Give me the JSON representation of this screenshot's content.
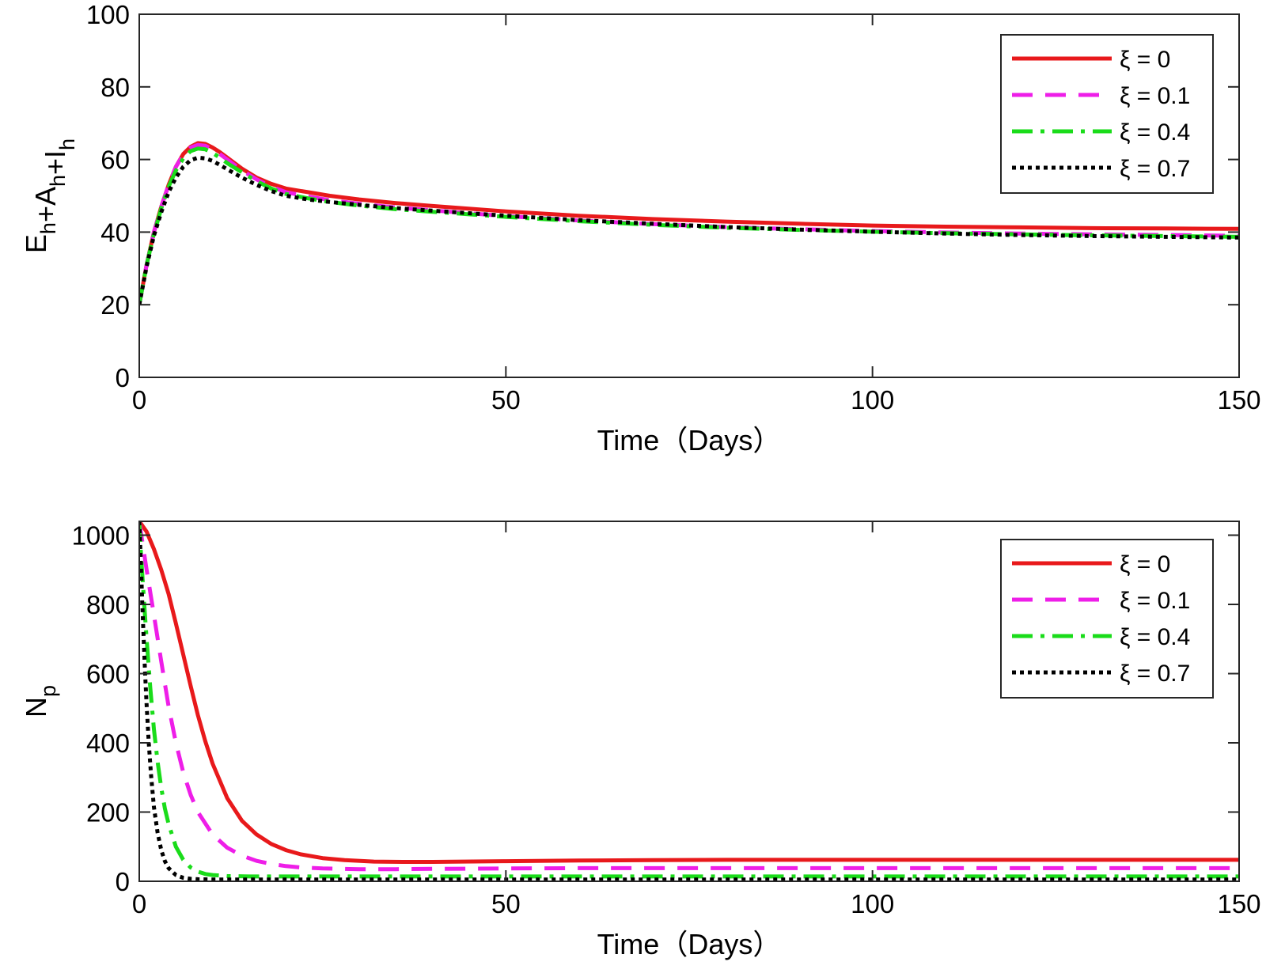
{
  "chart_data": [
    {
      "type": "line",
      "title": "",
      "xlabel": "Time（Days）",
      "ylabel_parts": [
        {
          "text": "E",
          "sub": "h"
        },
        {
          "text": "+A",
          "sub": "h"
        },
        {
          "text": "+I",
          "sub": "h"
        }
      ],
      "xlim": [
        0,
        150
      ],
      "ylim": [
        0,
        100
      ],
      "xticks": [
        0,
        50,
        100,
        150
      ],
      "yticks": [
        0,
        20,
        40,
        60,
        80,
        100
      ],
      "grid": false,
      "legend_position": "top-right",
      "series": [
        {
          "name": "ξ = 0",
          "color": "#e8191b",
          "style": "solid",
          "x": [
            0,
            1,
            2,
            3,
            4,
            5,
            6,
            7,
            8,
            9,
            10,
            11,
            12,
            14,
            16,
            18,
            20,
            23,
            26,
            30,
            35,
            40,
            50,
            60,
            70,
            80,
            90,
            100,
            110,
            120,
            130,
            140,
            150
          ],
          "y": [
            20,
            31,
            40,
            47,
            53,
            58,
            61.5,
            63.5,
            64.5,
            64.3,
            63.3,
            62,
            60.5,
            57.5,
            55,
            53.3,
            52,
            51,
            50,
            49,
            48,
            47.2,
            45.7,
            44.5,
            43.6,
            42.9,
            42.3,
            41.8,
            41.5,
            41.3,
            41.1,
            41,
            40.9
          ]
        },
        {
          "name": "ξ = 0.1",
          "color": "#ee1ee8",
          "style": "dashed",
          "x": [
            0,
            1,
            2,
            3,
            4,
            5,
            6,
            7,
            8,
            9,
            10,
            11,
            12,
            14,
            16,
            18,
            20,
            23,
            26,
            30,
            35,
            40,
            50,
            60,
            70,
            80,
            90,
            100,
            110,
            120,
            130,
            140,
            150
          ],
          "y": [
            20,
            31,
            40,
            47,
            53,
            58,
            61.3,
            63.3,
            64,
            63.8,
            62.8,
            61.5,
            60,
            57,
            54.5,
            52.5,
            51,
            49.8,
            48.8,
            47.8,
            46.8,
            46,
            44.4,
            43.2,
            42.2,
            41.4,
            40.8,
            40.3,
            39.9,
            39.6,
            39.4,
            39.2,
            39
          ]
        },
        {
          "name": "ξ = 0.4",
          "color": "#1adc1a",
          "style": "dashdot",
          "x": [
            0,
            1,
            2,
            3,
            4,
            5,
            6,
            7,
            8,
            9,
            10,
            11,
            12,
            14,
            16,
            18,
            20,
            23,
            26,
            30,
            35,
            40,
            50,
            60,
            70,
            80,
            90,
            100,
            110,
            120,
            130,
            140,
            150
          ],
          "y": [
            20,
            31,
            39.5,
            46.5,
            52.5,
            57,
            60.3,
            62.3,
            63,
            62.8,
            61.8,
            60.5,
            59,
            56.5,
            54,
            52,
            50.5,
            49.3,
            48.3,
            47.3,
            46.3,
            45.6,
            44.2,
            43,
            42,
            41.2,
            40.6,
            40.1,
            39.7,
            39.4,
            39.1,
            38.9,
            38.7
          ]
        },
        {
          "name": "ξ = 0.7",
          "color": "#000000",
          "style": "dotted",
          "x": [
            0,
            1,
            2,
            3,
            4,
            5,
            6,
            7,
            8,
            9,
            10,
            11,
            12,
            14,
            16,
            18,
            20,
            23,
            26,
            30,
            35,
            40,
            50,
            60,
            70,
            80,
            90,
            100,
            110,
            120,
            130,
            140,
            150
          ],
          "y": [
            20,
            30.5,
            39,
            45.5,
            51,
            55,
            58,
            59.8,
            60.5,
            60.3,
            59.6,
            58.5,
            57.3,
            55,
            53,
            51.3,
            50,
            49,
            48.3,
            47.5,
            46.6,
            45.9,
            44.5,
            43.3,
            42.3,
            41.4,
            40.7,
            40.1,
            39.6,
            39.2,
            38.9,
            38.7,
            38.5
          ]
        }
      ]
    },
    {
      "type": "line",
      "title": "",
      "xlabel": "Time（Days）",
      "ylabel_parts": [
        {
          "text": "N",
          "sub": "p"
        }
      ],
      "xlim": [
        0,
        150
      ],
      "ylim": [
        0,
        1040
      ],
      "xticks": [
        0,
        50,
        100,
        150
      ],
      "yticks": [
        0,
        200,
        400,
        600,
        800,
        1000
      ],
      "grid": false,
      "legend_position": "top-right",
      "series": [
        {
          "name": "ξ = 0",
          "color": "#e8191b",
          "style": "solid",
          "x": [
            0,
            1,
            2,
            3,
            4,
            5,
            6,
            7,
            8,
            9,
            10,
            12,
            14,
            16,
            18,
            20,
            22,
            25,
            28,
            32,
            36,
            40,
            50,
            60,
            70,
            80,
            100,
            120,
            150
          ],
          "y": [
            1040,
            1010,
            960,
            900,
            830,
            745,
            655,
            565,
            480,
            405,
            340,
            240,
            175,
            135,
            108,
            90,
            78,
            67,
            61,
            57,
            56,
            56,
            58,
            60,
            61,
            62,
            62,
            62,
            62
          ]
        },
        {
          "name": "ξ = 0.1",
          "color": "#ee1ee8",
          "style": "dashed",
          "x": [
            0,
            0.5,
            1,
            1.5,
            2,
            3,
            4,
            5,
            6,
            7,
            8,
            10,
            12,
            14,
            16,
            18,
            20,
            22,
            25,
            30,
            35,
            40,
            50,
            60,
            80,
            100,
            120,
            150
          ],
          "y": [
            1040,
            970,
            900,
            835,
            770,
            635,
            505,
            400,
            315,
            250,
            200,
            135,
            97,
            74,
            59,
            50,
            44,
            40,
            37,
            35,
            35,
            36,
            37,
            38,
            38,
            38,
            38,
            38
          ]
        },
        {
          "name": "ξ = 0.4",
          "color": "#1adc1a",
          "style": "dashdot",
          "x": [
            0,
            0.25,
            0.5,
            0.75,
            1,
            1.5,
            2,
            2.5,
            3,
            3.5,
            4,
            5,
            6,
            7,
            8,
            9,
            10,
            12,
            15,
            20,
            30,
            50,
            80,
            100,
            150
          ],
          "y": [
            1040,
            940,
            860,
            780,
            700,
            560,
            440,
            345,
            270,
            210,
            165,
            100,
            62,
            40,
            28,
            21,
            18,
            15,
            14,
            14,
            14,
            14,
            14,
            14,
            14
          ]
        },
        {
          "name": "ξ = 0.7",
          "color": "#000000",
          "style": "dotted",
          "x": [
            0,
            0.2,
            0.4,
            0.6,
            0.8,
            1,
            1.3,
            1.6,
            2,
            2.5,
            3,
            3.5,
            4,
            5,
            6,
            7,
            8,
            10,
            15,
            30,
            60,
            100,
            150
          ],
          "y": [
            1040,
            930,
            810,
            700,
            600,
            510,
            400,
            310,
            215,
            140,
            90,
            58,
            38,
            18,
            10,
            7,
            6,
            5,
            5,
            5,
            5,
            5,
            5
          ]
        }
      ]
    }
  ]
}
